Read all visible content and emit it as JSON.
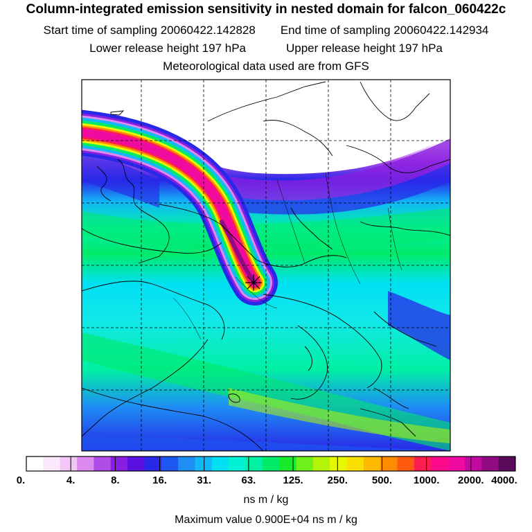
{
  "header": {
    "title": "Column-integrated emission sensitivity in nested domain for falcon_060422c",
    "start_label": "Start time of sampling 20060422.142828",
    "end_label": "End time of sampling 20060422.142934",
    "lower_label": "Lower release height  197 hPa",
    "upper_label": "Upper release height  197 hPa",
    "met_label": "Meteorological data used are from GFS"
  },
  "colorbar": {
    "labels": [
      "0.",
      "4.",
      "8.",
      "16.",
      "31.",
      "63.",
      "125.",
      "250.",
      "500.",
      "1000.",
      "2000.",
      "4000."
    ],
    "unit": "ns m / kg",
    "colors": [
      "#ffffff",
      "#fce8fc",
      "#f2c6f6",
      "#dc8af0",
      "#b04ce8",
      "#8a1ee0",
      "#5a10e0",
      "#2828e8",
      "#1e56f0",
      "#1e8ef4",
      "#12b8f8",
      "#00e0f4",
      "#00f2d6",
      "#00f0a4",
      "#00ea6a",
      "#18ea2c",
      "#6ef01a",
      "#b4f408",
      "#e8f800",
      "#fae000",
      "#ffba00",
      "#ff8c00",
      "#ff5a10",
      "#ff1e50",
      "#ff0a8a",
      "#f00aa0",
      "#c00aa0",
      "#900a82",
      "#5a0a5a"
    ]
  },
  "max_value": "Maximum value  0.900E+04 ns m / kg"
}
